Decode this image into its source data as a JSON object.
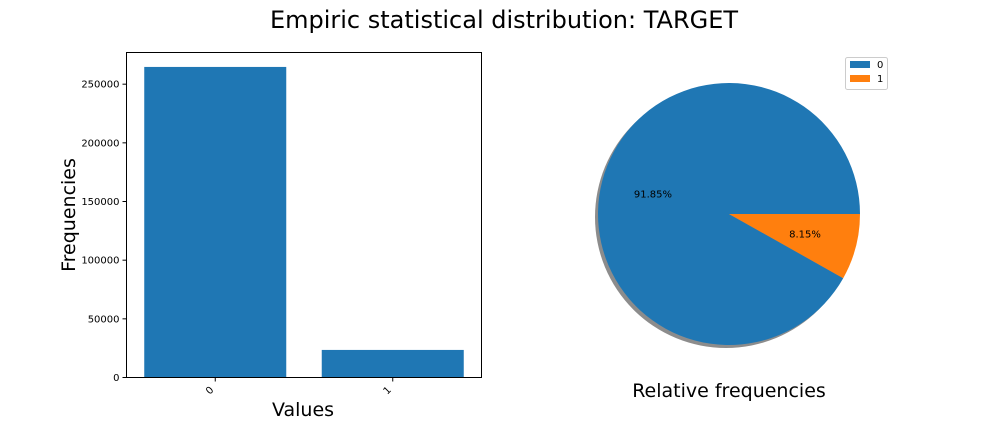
{
  "figure": {
    "title": "Empiric statistical distribution: TARGET"
  },
  "chart_data": [
    {
      "type": "bar",
      "categories": [
        "0",
        "1"
      ],
      "values": [
        264700,
        23500
      ],
      "xlabel": "Values",
      "ylabel": "Frequencies",
      "ylim": [
        0,
        277000
      ],
      "yticks": [
        0,
        50000,
        100000,
        150000,
        200000,
        250000
      ],
      "ytick_labels": [
        "0",
        "50000",
        "100000",
        "150000",
        "200000",
        "250000"
      ],
      "color": "#1f77b4",
      "grid": false
    },
    {
      "type": "pie",
      "labels": [
        "0",
        "1"
      ],
      "values": [
        91.85,
        8.15
      ],
      "slice_labels": [
        "91.85%",
        "8.15%"
      ],
      "colors": [
        "#1f77b4",
        "#ff7f0e"
      ],
      "shadow": true,
      "legend": "top-right",
      "xlabel": "Relative frequencies"
    }
  ]
}
